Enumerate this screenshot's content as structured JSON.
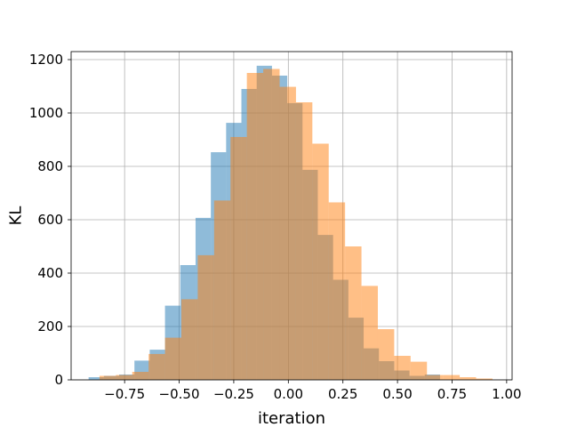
{
  "chart_data": {
    "type": "bar",
    "xlabel": "iteration",
    "ylabel": "KL",
    "xlim": [
      -0.995,
      1.025
    ],
    "ylim": [
      0,
      1230
    ],
    "grid": true,
    "xticks": [
      -0.75,
      -0.5,
      -0.25,
      0.0,
      0.25,
      0.5,
      0.75,
      1.0
    ],
    "xtick_labels": [
      "−0.75",
      "−0.50",
      "−0.25",
      "0.00",
      "0.25",
      "0.50",
      "0.75",
      "1.00"
    ],
    "yticks": [
      0,
      200,
      400,
      600,
      800,
      1000,
      1200
    ],
    "ytick_labels": [
      "0",
      "200",
      "400",
      "600",
      "800",
      "1000",
      "1200"
    ],
    "series": [
      {
        "color": "#1f77b4",
        "alpha": 0.5,
        "bins": [
          [
            -0.915,
            -0.845,
            10
          ],
          [
            -0.845,
            -0.775,
            15
          ],
          [
            -0.775,
            -0.705,
            20
          ],
          [
            -0.705,
            -0.635,
            72
          ],
          [
            -0.635,
            -0.565,
            113
          ],
          [
            -0.565,
            -0.495,
            278
          ],
          [
            -0.495,
            -0.425,
            430
          ],
          [
            -0.425,
            -0.355,
            607
          ],
          [
            -0.355,
            -0.285,
            853
          ],
          [
            -0.285,
            -0.215,
            963
          ],
          [
            -0.215,
            -0.145,
            1090
          ],
          [
            -0.145,
            -0.075,
            1177
          ],
          [
            -0.075,
            -0.005,
            1140
          ],
          [
            -0.005,
            0.065,
            1037
          ],
          [
            0.065,
            0.135,
            787
          ],
          [
            0.135,
            0.205,
            543
          ],
          [
            0.205,
            0.275,
            375
          ],
          [
            0.275,
            0.345,
            233
          ],
          [
            0.345,
            0.415,
            118
          ],
          [
            0.415,
            0.485,
            70
          ],
          [
            0.485,
            0.555,
            35
          ],
          [
            0.555,
            0.625,
            15
          ],
          [
            0.625,
            0.695,
            20
          ]
        ]
      },
      {
        "color": "#ff7f0e",
        "alpha": 0.5,
        "bins": [
          [
            -0.865,
            -0.79,
            15
          ],
          [
            -0.79,
            -0.715,
            18
          ],
          [
            -0.715,
            -0.64,
            30
          ],
          [
            -0.64,
            -0.565,
            97
          ],
          [
            -0.565,
            -0.49,
            158
          ],
          [
            -0.49,
            -0.415,
            302
          ],
          [
            -0.415,
            -0.34,
            467
          ],
          [
            -0.34,
            -0.265,
            672
          ],
          [
            -0.265,
            -0.19,
            910
          ],
          [
            -0.19,
            -0.115,
            1150
          ],
          [
            -0.115,
            -0.04,
            1165
          ],
          [
            -0.04,
            0.035,
            1098
          ],
          [
            0.035,
            0.11,
            1040
          ],
          [
            0.11,
            0.185,
            885
          ],
          [
            0.185,
            0.26,
            665
          ],
          [
            0.26,
            0.335,
            500
          ],
          [
            0.335,
            0.41,
            352
          ],
          [
            0.41,
            0.485,
            190
          ],
          [
            0.485,
            0.56,
            90
          ],
          [
            0.56,
            0.635,
            68
          ],
          [
            0.635,
            0.71,
            18
          ],
          [
            0.71,
            0.785,
            18
          ],
          [
            0.785,
            0.86,
            10
          ],
          [
            0.86,
            0.935,
            5
          ]
        ]
      }
    ]
  }
}
